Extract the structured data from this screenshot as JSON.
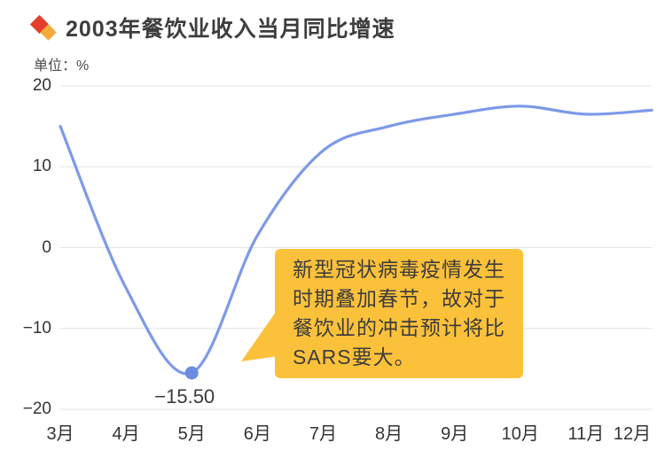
{
  "header": {
    "title": "2003年餐饮业收入当月同比增速",
    "icon_colors": {
      "red": "#e23e2b",
      "amber": "#f4a93b"
    }
  },
  "unit_label": "单位：%",
  "chart_data": {
    "type": "line",
    "title": "2003年餐饮业收入当月同比增速",
    "categories": [
      "3月",
      "4月",
      "5月",
      "6月",
      "7月",
      "8月",
      "9月",
      "10月",
      "11月",
      "12月"
    ],
    "values": [
      15,
      -5,
      -15.5,
      1.5,
      12,
      15,
      16.5,
      17.5,
      16.5,
      17
    ],
    "xlabel": "",
    "ylabel": "单位：%",
    "ylim": [
      -20,
      20
    ],
    "yticks": [
      {
        "value": 20,
        "label": "20"
      },
      {
        "value": 10,
        "label": "10"
      },
      {
        "value": 0,
        "label": "0"
      },
      {
        "value": -10,
        "label": "−10"
      },
      {
        "value": -20,
        "label": "−20"
      }
    ],
    "grid": true,
    "legend": "none",
    "line_color": "#7d99e8",
    "marker": {
      "category": "5月",
      "value": -15.5,
      "label": "−15.50",
      "color": "#6b8ce2"
    },
    "annotation": {
      "text": "新型冠状病毒疫情发生\n时期叠加春节，故对于\n餐饮业的冲击预计将比\nSARS要大。",
      "bg_color": "#fcc13a",
      "text_color": "#3d3d3d"
    }
  }
}
